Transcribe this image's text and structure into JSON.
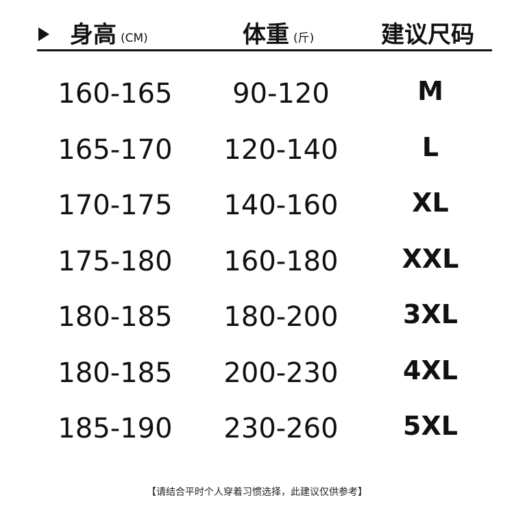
{
  "header": {
    "height_label": "身高",
    "height_unit": "(CM)",
    "weight_label": "体重",
    "weight_unit": "(斤)",
    "size_label": "建议尺码"
  },
  "rows": [
    {
      "height": "160-165",
      "weight": "90-120",
      "size": "M"
    },
    {
      "height": "165-170",
      "weight": "120-140",
      "size": "L"
    },
    {
      "height": "170-175",
      "weight": "140-160",
      "size": "XL"
    },
    {
      "height": "175-180",
      "weight": "160-180",
      "size": "XXL"
    },
    {
      "height": "180-185",
      "weight": "180-200",
      "size": "3XL"
    },
    {
      "height": "180-185",
      "weight": "200-230",
      "size": "4XL"
    },
    {
      "height": "185-190",
      "weight": "230-260",
      "size": "5XL"
    }
  ],
  "note": "【请结合平时个人穿着习惯选择，此建议仅供参考】"
}
